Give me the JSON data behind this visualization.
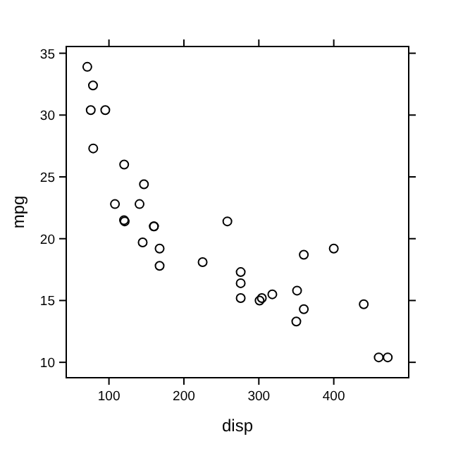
{
  "chart_data": {
    "type": "scatter",
    "xlabel": "disp",
    "ylabel": "mpg",
    "marker": "circle",
    "grid": false,
    "xlim": [
      43,
      500
    ],
    "ylim": [
      8.755,
      35.545
    ],
    "xticks": [
      100,
      200,
      300,
      400
    ],
    "yticks": [
      10,
      15,
      20,
      25,
      30,
      35
    ],
    "series": [
      {
        "color": "#000000",
        "x": [
          160,
          160,
          108,
          258,
          360,
          225,
          360,
          146.7,
          140.8,
          167.6,
          167.6,
          275.8,
          275.8,
          275.8,
          472,
          460,
          440,
          78.7,
          75.7,
          71.1,
          120.1,
          318,
          304,
          350,
          400,
          79,
          120.3,
          95.1,
          351,
          145,
          301,
          121
        ],
        "values": [
          21,
          21,
          22.8,
          21.4,
          18.7,
          18.1,
          14.3,
          24.4,
          22.8,
          19.2,
          17.8,
          16.4,
          17.3,
          15.2,
          10.4,
          10.4,
          14.7,
          32.4,
          30.4,
          33.9,
          21.5,
          15.5,
          15.2,
          13.3,
          19.2,
          27.3,
          26,
          30.4,
          15.8,
          19.7,
          15,
          21.4
        ]
      }
    ]
  }
}
